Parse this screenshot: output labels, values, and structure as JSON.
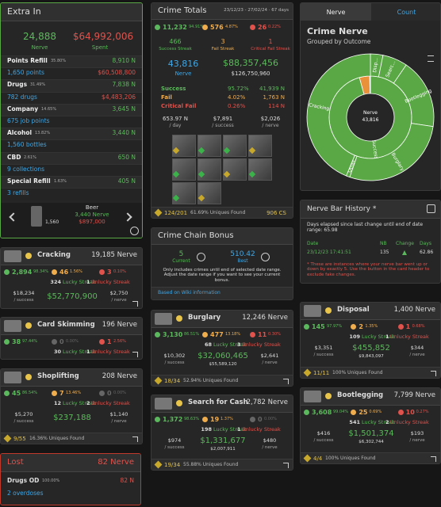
{
  "extra_in": {
    "title": "Extra In",
    "nerve": "24,888",
    "nerve_label": "Nerve",
    "spent": "$64,992,006",
    "spent_label": "Spent",
    "rows": [
      {
        "label": "Points Refill",
        "pct": "35.80%",
        "value": "8,910 N"
      },
      {
        "sub": "1,650 points",
        "value": "$60,508,800"
      },
      {
        "label": "Drugs",
        "pct": "31.49%",
        "value": "7,838 N"
      },
      {
        "sub": "782 drugs",
        "value": "$4,483,206"
      },
      {
        "label": "Company",
        "pct": "14.65%",
        "value": "3,645 N"
      },
      {
        "sub": "675 job points"
      },
      {
        "label": "Alcohol",
        "pct": "13.82%",
        "value": "3,440 N"
      },
      {
        "sub": "1,560 bottles"
      },
      {
        "label": "CBD",
        "pct": "2.61%",
        "value": "650 N"
      },
      {
        "sub": "9 collections"
      },
      {
        "label": "Special Refill",
        "pct": "1.63%",
        "value": "405 N"
      },
      {
        "sub": "3 refills"
      }
    ],
    "carousel": {
      "count": "1,560",
      "name": "Beer",
      "nerve": "3,440 Nerve",
      "cost": "$897,000"
    }
  },
  "crime_totals": {
    "title": "Crime Totals",
    "dates": "23/12/23 - 27/02/24 · 67 days",
    "success": "11,232",
    "success_pct": "94.91%",
    "fail": "576",
    "fail_pct": "4.87%",
    "crit": "26",
    "crit_pct": "0.22%",
    "streaks": [
      {
        "n": "466",
        "label": "Success Streak"
      },
      {
        "n": "3",
        "label": "Fail Streak"
      },
      {
        "n": "1",
        "label": "Critical Fail Streak"
      }
    ],
    "nerve": "43,816",
    "nerve_label": "Nerve",
    "money": "$88,357,456",
    "money_sub": "$126,750,960",
    "outcomes": [
      {
        "label": "Success",
        "pct": "95.72%",
        "value": "41,939 N"
      },
      {
        "label": "Fail",
        "pct": "4.02%",
        "value": "1,763 N"
      },
      {
        "label": "Critical Fail",
        "pct": "0.26%",
        "value": "114 N"
      }
    ],
    "rates": [
      {
        "v": "653.97 N",
        "l": "/ day"
      },
      {
        "v": "$7,891",
        "l": "/ success"
      },
      {
        "v": "$2,026",
        "l": "/ nerve"
      }
    ],
    "found": "124/201",
    "found_pct": "61.69% Uniques Found",
    "cs": "906 CS"
  },
  "chain_bonus": {
    "title": "Crime Chain Bonus",
    "current": "5",
    "current_label": "Current",
    "best": "510.42",
    "best_label": "Best",
    "note": "Only includes crimes until end of selected date range. Adjust the date range if you want to see your current bonus.",
    "link": "Based on Wiki information"
  },
  "crime_nerve": {
    "tabs": [
      "Nerve",
      "Count"
    ],
    "title": "Crime Nerve",
    "subtitle": "Grouped by Outcome",
    "center_label": "Nerve",
    "center_value": "43,816",
    "inner": [
      {
        "label": "Success",
        "value": 41939,
        "color": "#5aa845"
      },
      {
        "label": null,
        "value": 1763,
        "color": "#e8913a"
      },
      {
        "label": null,
        "value": 114,
        "color": "#d9534f"
      }
    ],
    "outer": [
      {
        "label": "Disp...",
        "value": 1400
      },
      {
        "label": "Searc...",
        "value": 2782
      },
      {
        "label": "Bootlegging",
        "value": 7799
      },
      {
        "label": "Burglary",
        "value": 12246
      },
      {
        "label": "Other",
        "value": 404
      },
      {
        "label": "Cracking",
        "value": 19185
      }
    ],
    "outer_color": "#5aa845"
  },
  "nerve_history": {
    "title": "Nerve Bar History *",
    "elapsed": "Days elapsed since last change until end of date range: 65.98",
    "headers": [
      "Date",
      "NB",
      "Change",
      "Days"
    ],
    "row": [
      "23/12/23 17:41:51",
      "135",
      "62.86"
    ],
    "note": "* These are instances where your nerve bar went up or down by exactly 5. Use the button in the card header to exclude fake changes."
  },
  "crimes": [
    {
      "name": "Cracking",
      "nerve": "19,185 Nerve",
      "success": "2,894",
      "success_pct": "98.34%",
      "fail": "46",
      "fail_pct": "1.56%",
      "crit": "3",
      "crit_pct": "0.10%",
      "lucky": "324",
      "lucky_label": "Lucky Streak",
      "unlucky": "1",
      "unlucky_label": "Unlucky Streak",
      "per_success": "$18,234",
      "per_success_label": "/ success",
      "money": "$52,770,900",
      "per_nerve": "$2,750",
      "per_nerve_label": "/ nerve"
    },
    {
      "name": "Card Skimming",
      "nerve": "196 Nerve",
      "success": "38",
      "success_pct": "97.44%",
      "fail": "0",
      "fail_pct": "0.00%",
      "crit": "1",
      "crit_pct": "2.56%",
      "lucky": "30",
      "lucky_label": "Lucky Streak",
      "unlucky": "1",
      "unlucky_label": "Unlucky Streak"
    },
    {
      "name": "Shoplifting",
      "nerve": "208 Nerve",
      "success": "45",
      "success_pct": "86.54%",
      "fail": "7",
      "fail_pct": "13.46%",
      "crit": "0",
      "crit_pct": "0.00%",
      "lucky": "12",
      "lucky_label": "Lucky Streak",
      "unlucky": "2",
      "unlucky_label": "Unlucky Streak",
      "per_success": "$5,270",
      "per_success_label": "/ success",
      "money": "$237,188",
      "per_nerve": "$1,140",
      "per_nerve_label": "/ nerve",
      "found": "9/55",
      "found_pct": "16.36% Uniques Found"
    },
    {
      "name": "Burglary",
      "nerve": "12,246 Nerve",
      "success": "3,130",
      "success_pct": "86.51%",
      "fail": "477",
      "fail_pct": "13.18%",
      "crit": "11",
      "crit_pct": "0.30%",
      "lucky": "68",
      "lucky_label": "Lucky Streak",
      "unlucky": "3",
      "unlucky_label": "Unlucky Streak",
      "per_success": "$10,302",
      "per_success_label": "/ success",
      "money": "$32,060,465",
      "money_sub": "$55,589,120",
      "per_nerve": "$2,641",
      "per_nerve_label": "/ nerve",
      "found": "18/34",
      "found_pct": "52.94% Uniques Found"
    },
    {
      "name": "Search for Cash",
      "nerve": "2,782 Nerve",
      "success": "1,372",
      "success_pct": "98.63%",
      "fail": "19",
      "fail_pct": "1.37%",
      "crit": "0",
      "crit_pct": "0.00%",
      "lucky": "198",
      "lucky_label": "Lucky Streak",
      "unlucky": "1",
      "unlucky_label": "Unlucky Streak",
      "per_success": "$974",
      "per_success_label": "/ success",
      "money": "$1,331,677",
      "money_sub": "$2,007,911",
      "per_nerve": "$480",
      "per_nerve_label": "/ nerve",
      "found": "19/34",
      "found_pct": "55.88% Uniques Found"
    },
    {
      "name": "Disposal",
      "nerve": "1,400 Nerve",
      "success": "145",
      "success_pct": "97.97%",
      "fail": "2",
      "fail_pct": "1.35%",
      "crit": "1",
      "crit_pct": "0.68%",
      "lucky": "109",
      "lucky_label": "Lucky Streak",
      "unlucky": "1",
      "unlucky_label": "Unlucky Streak",
      "per_success": "$3,351",
      "per_success_label": "/ success",
      "money": "$455,852",
      "money_sub": "$9,843,097",
      "per_nerve": "$344",
      "per_nerve_label": "/ nerve",
      "found": "11/11",
      "found_pct": "100% Uniques Found"
    },
    {
      "name": "Bootlegging",
      "nerve": "7,799 Nerve",
      "success": "3,608",
      "success_pct": "99.04%",
      "fail": "25",
      "fail_pct": "0.69%",
      "crit": "10",
      "crit_pct": "0.27%",
      "lucky": "541",
      "lucky_label": "Lucky Streak",
      "unlucky": "2",
      "unlucky_label": "Unlucky Streak",
      "per_success": "$416",
      "per_success_label": "/ success",
      "money": "$1,501,374",
      "money_sub": "$6,302,744",
      "per_nerve": "$193",
      "per_nerve_label": "/ nerve",
      "found": "4/4",
      "found_pct": "100% Uniques Found"
    }
  ],
  "lost": {
    "title": "Lost",
    "nerve": "82 Nerve",
    "label": "Drugs OD",
    "pct": "100.00%",
    "value": "82 N",
    "sub": "2 overdoses"
  }
}
